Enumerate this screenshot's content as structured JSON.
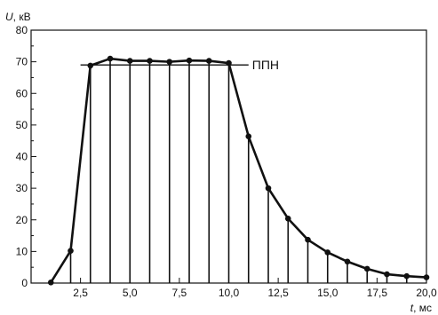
{
  "chart_data": {
    "type": "line",
    "ylabel": {
      "symbol": "U",
      "unit": ", кВ"
    },
    "xlabel": {
      "symbol": "t",
      "unit": ", мс"
    },
    "xlim": [
      0,
      20.0
    ],
    "ylim": [
      0,
      80
    ],
    "x_ticks": [
      2.5,
      5.0,
      7.5,
      10.0,
      12.5,
      15.0,
      17.5,
      20.0
    ],
    "x_tick_labels": [
      "2,5",
      "5,0",
      "7,5",
      "10,0",
      "12,5",
      "15,0",
      "17,5",
      "20,0"
    ],
    "y_ticks": [
      0,
      10,
      20,
      30,
      40,
      50,
      60,
      70,
      80
    ],
    "y_tick_labels": [
      "0",
      "10",
      "20",
      "30",
      "40",
      "50",
      "60",
      "70",
      "80"
    ],
    "grid": false,
    "series": [
      {
        "x": [
          1,
          2,
          3,
          4,
          5,
          6,
          7,
          8,
          9,
          10,
          11,
          12,
          13,
          14,
          15,
          16,
          17,
          18,
          19,
          20
        ],
        "y": [
          0.2,
          10.2,
          68.8,
          71.0,
          70.3,
          70.3,
          70.0,
          70.4,
          70.3,
          69.6,
          46.4,
          30.0,
          20.4,
          13.7,
          9.7,
          6.8,
          4.5,
          2.8,
          2.2,
          1.8
        ]
      }
    ],
    "vertical_lines": [
      2,
      3,
      4,
      5,
      6,
      7,
      8,
      9,
      10,
      11,
      12,
      13,
      14,
      15,
      16,
      17,
      18,
      19
    ],
    "reference_line": {
      "label": "ППН",
      "y": 69,
      "x_from": 2.5,
      "x_to": 11.0
    }
  }
}
